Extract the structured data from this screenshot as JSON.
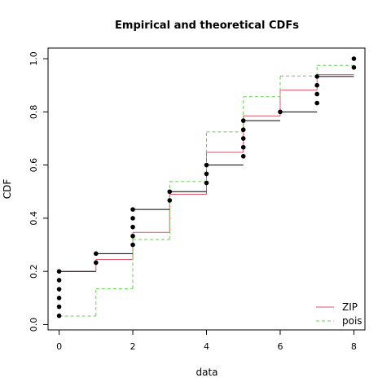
{
  "chart_data": {
    "type": "line",
    "title": "Empirical and theoretical CDFs",
    "xlabel": "data",
    "ylabel": "CDF",
    "xlim": [
      -0.3,
      8.3
    ],
    "ylim": [
      -0.02,
      1.04
    ],
    "xticks": [
      0,
      2,
      4,
      6,
      8
    ],
    "yticks": [
      0.0,
      0.2,
      0.4,
      0.6,
      0.8,
      1.0
    ],
    "ytick_labels": [
      "0.0",
      "0.2",
      "0.4",
      "0.6",
      "0.8",
      "1.0"
    ],
    "grid": false,
    "legend_position": "bottom-right",
    "empirical": {
      "x": [
        0,
        1,
        2,
        3,
        4,
        5,
        6,
        7,
        8
      ],
      "ecdf": [
        0.2,
        0.267,
        0.433,
        0.5,
        0.6,
        0.767,
        0.8,
        0.933,
        1.0
      ],
      "points": [
        {
          "x": 0,
          "y": [
            0.033,
            0.067,
            0.1,
            0.133,
            0.167,
            0.2
          ]
        },
        {
          "x": 1,
          "y": [
            0.233,
            0.267
          ]
        },
        {
          "x": 2,
          "y": [
            0.3,
            0.333,
            0.367,
            0.4,
            0.433
          ]
        },
        {
          "x": 3,
          "y": [
            0.467,
            0.5
          ]
        },
        {
          "x": 4,
          "y": [
            0.533,
            0.567,
            0.6
          ]
        },
        {
          "x": 5,
          "y": [
            0.633,
            0.667,
            0.7,
            0.733,
            0.767
          ]
        },
        {
          "x": 6,
          "y": [
            0.8
          ]
        },
        {
          "x": 7,
          "y": [
            0.833,
            0.867,
            0.9,
            0.933
          ]
        },
        {
          "x": 8,
          "y": [
            0.967,
            1.0
          ]
        }
      ],
      "color": "#000000"
    },
    "series": [
      {
        "name": "ZIP",
        "x": [
          0,
          1,
          2,
          3,
          4,
          5,
          6,
          7,
          8
        ],
        "values": [
          0.2,
          0.245,
          0.347,
          0.49,
          0.648,
          0.785,
          0.882,
          0.94,
          0.94
        ],
        "color": "#df536b",
        "dash": "solid"
      },
      {
        "name": "pois",
        "x": [
          0,
          1,
          2,
          3,
          4,
          5,
          6,
          7,
          8
        ],
        "values": [
          0.032,
          0.135,
          0.32,
          0.538,
          0.725,
          0.857,
          0.935,
          0.975,
          0.975
        ],
        "color": "#61d04f",
        "dash": "dashed"
      }
    ]
  }
}
